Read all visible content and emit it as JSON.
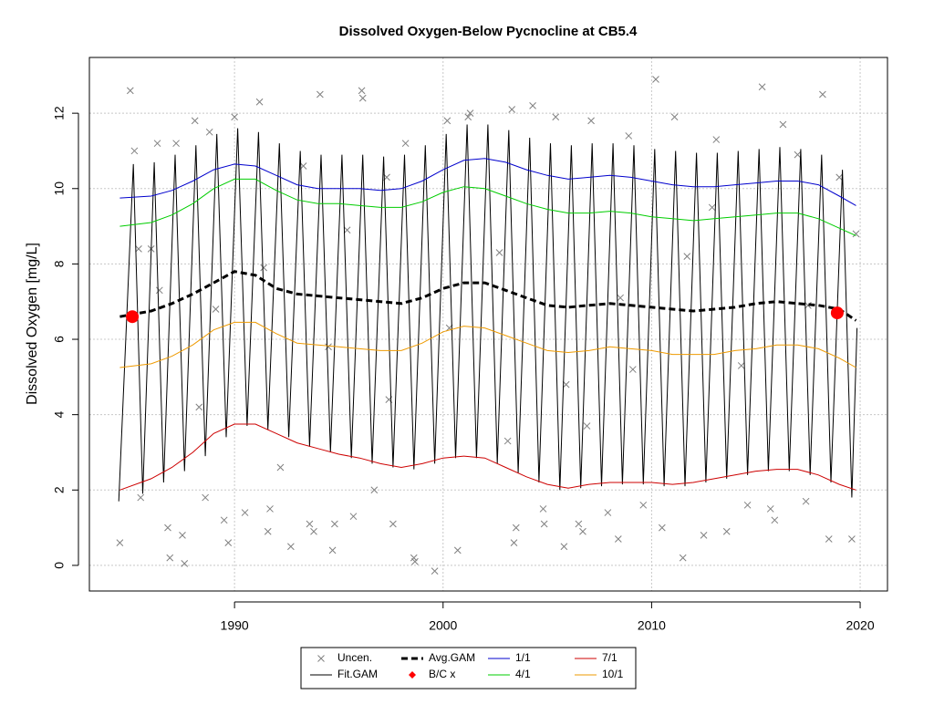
{
  "chart_data": {
    "type": "line",
    "title": "Dissolved Oxygen-Below Pycnocline at CB5.4",
    "y_label": "Dissolved Oxygen [mg/L]",
    "xlim": [
      1983.04,
      2021.31
    ],
    "ylim": [
      -0.68,
      13.48
    ],
    "xticks": [
      1990,
      2000,
      2010,
      2020
    ],
    "yticks": [
      0,
      2,
      4,
      6,
      8,
      10,
      12
    ],
    "grid": true,
    "legend": "bottom",
    "x": [
      1984.5,
      1986,
      1987,
      1988,
      1989,
      1990,
      1991,
      1992,
      1993,
      1994,
      1995,
      1996,
      1997,
      1998,
      1999,
      2000,
      2001,
      2002,
      2003,
      2004,
      2005,
      2006,
      2007,
      2008,
      2009,
      2010,
      2011,
      2012,
      2013,
      2014,
      2015,
      2016,
      2017,
      2018,
      2019,
      2019.8
    ],
    "series": [
      {
        "name": "Uncen.",
        "mark": "x",
        "color": "#808080",
        "x": [
          1984.5,
          1985.0,
          1985.2,
          1985.4,
          1985.5,
          1986.0,
          1986.3,
          1986.8,
          1986.9,
          1987.2,
          1987.5,
          1987.6,
          1988.1,
          1988.6,
          1988.8,
          1989.5,
          1989.7,
          1990.0,
          1990.5,
          1991.2,
          1991.6,
          1991.7,
          1992.2,
          1992.7,
          1993.3,
          1993.6,
          1993.8,
          1994.1,
          1994.7,
          1994.8,
          1995.7,
          1996.1,
          1996.15,
          1996.7,
          1997.3,
          1997.6,
          1998.2,
          1998.6,
          1998.65,
          1999.6,
          2000.2,
          2000.7,
          2001.3,
          2001.2,
          2003.4,
          2003.3,
          2003.5,
          2004.3,
          2004.8,
          2004.85,
          2005.4,
          2005.8,
          2006.5,
          2006.7,
          2007.1,
          2007.9,
          2008.4,
          2008.9,
          2009.6,
          2010.2,
          2010.5,
          2011.1,
          2011.5,
          2012.5,
          2013.1,
          2013.6,
          2014.6,
          2015.3,
          2015.7,
          2015.9,
          2016.3,
          2017.0,
          2017.4,
          2018.2,
          2018.5,
          2019.0,
          2019.6,
          2019.8,
          1986.4,
          1989.1,
          1991.4,
          1994.5,
          1997.4,
          2000.3,
          2002.7,
          2005.9,
          2008.5,
          2011.7,
          2014.3,
          2017.5,
          1988.3,
          1995.4,
          2006.9,
          2012.9,
          2009.1,
          2003.1
        ],
        "values": [
          0.6,
          12.6,
          11.0,
          8.4,
          1.8,
          8.4,
          11.2,
          1.0,
          0.2,
          11.2,
          0.8,
          0.05,
          11.8,
          1.8,
          11.5,
          1.2,
          0.6,
          11.9,
          1.4,
          12.3,
          0.9,
          1.5,
          2.6,
          0.5,
          10.6,
          1.1,
          0.9,
          12.5,
          0.4,
          1.1,
          1.3,
          12.6,
          12.4,
          2.0,
          10.3,
          1.1,
          11.2,
          0.2,
          0.1,
          -0.15,
          11.8,
          0.4,
          12.0,
          11.9,
          0.6,
          12.1,
          1.0,
          12.2,
          1.5,
          1.1,
          11.9,
          0.5,
          1.1,
          0.9,
          11.8,
          1.4,
          0.7,
          11.4,
          1.6,
          12.9,
          1.0,
          11.9,
          0.2,
          0.8,
          11.3,
          0.9,
          1.6,
          12.7,
          1.5,
          1.2,
          11.7,
          10.9,
          1.7,
          12.5,
          0.7,
          10.3,
          0.7,
          8.8,
          7.3,
          6.8,
          7.9,
          5.8,
          4.4,
          6.3,
          8.3,
          4.8,
          7.1,
          8.2,
          5.3,
          6.9,
          4.2,
          8.9,
          3.7,
          9.5,
          5.2,
          3.3
        ]
      },
      {
        "name": "Fit.GAM",
        "mark": "line",
        "color": "#000000",
        "x": [
          1984.45,
          1985.15,
          1985.6,
          1986.15,
          1986.6,
          1987.15,
          1987.6,
          1988.15,
          1988.6,
          1989.15,
          1989.6,
          1990.15,
          1990.6,
          1991.15,
          1991.6,
          1992.15,
          1992.6,
          1993.15,
          1993.6,
          1994.15,
          1994.6,
          1995.15,
          1995.6,
          1996.15,
          1996.6,
          1997.15,
          1997.6,
          1998.15,
          1998.6,
          1999.15,
          1999.6,
          2000.15,
          2000.6,
          2001.15,
          2001.6,
          2002.15,
          2002.6,
          2003.15,
          2003.6,
          2004.15,
          2004.6,
          2005.15,
          2005.6,
          2006.15,
          2006.6,
          2007.15,
          2007.6,
          2008.15,
          2008.6,
          2009.15,
          2009.6,
          2010.15,
          2010.6,
          2011.15,
          2011.6,
          2012.15,
          2012.6,
          2013.15,
          2013.6,
          2014.15,
          2014.6,
          2015.15,
          2015.6,
          2016.15,
          2016.6,
          2017.15,
          2017.6,
          2018.15,
          2018.6,
          2019.15,
          2019.6,
          2019.85
        ],
        "values": [
          1.7,
          10.65,
          1.9,
          10.7,
          2.2,
          10.9,
          2.5,
          11.15,
          2.9,
          11.45,
          3.4,
          11.6,
          3.7,
          11.5,
          3.6,
          11.2,
          3.4,
          11.0,
          3.15,
          10.9,
          3.0,
          10.9,
          2.85,
          10.9,
          2.7,
          10.85,
          2.6,
          10.9,
          2.55,
          11.15,
          2.7,
          11.45,
          2.85,
          11.7,
          2.85,
          11.7,
          2.7,
          11.55,
          2.45,
          11.35,
          2.2,
          11.2,
          2.0,
          11.15,
          2.05,
          11.2,
          2.1,
          11.2,
          2.15,
          11.15,
          2.15,
          11.05,
          2.1,
          11.0,
          2.1,
          10.95,
          2.2,
          10.95,
          2.3,
          11.0,
          2.4,
          11.05,
          2.5,
          11.1,
          2.5,
          11.05,
          2.4,
          10.9,
          2.2,
          10.5,
          1.8,
          6.3
        ]
      },
      {
        "name": "Avg.GAM",
        "mark": "dash",
        "color": "#000000",
        "values": [
          6.6,
          6.75,
          6.95,
          7.2,
          7.5,
          7.8,
          7.7,
          7.35,
          7.2,
          7.15,
          7.1,
          7.05,
          7.0,
          6.95,
          7.1,
          7.35,
          7.5,
          7.5,
          7.3,
          7.1,
          6.9,
          6.85,
          6.9,
          6.95,
          6.9,
          6.85,
          6.8,
          6.75,
          6.8,
          6.85,
          6.95,
          7.0,
          6.95,
          6.9,
          6.8,
          6.5
        ]
      },
      {
        "name": "B/C x",
        "mark": "dot",
        "color": "#ff0000",
        "x": [
          1985.1,
          2018.9
        ],
        "values": [
          6.6,
          6.7
        ]
      },
      {
        "name": "1/1",
        "mark": "line",
        "color": "#0000cd",
        "values": [
          9.75,
          9.8,
          9.95,
          10.2,
          10.5,
          10.65,
          10.6,
          10.35,
          10.1,
          10.0,
          10.0,
          10.0,
          9.95,
          10.0,
          10.2,
          10.5,
          10.75,
          10.8,
          10.7,
          10.5,
          10.35,
          10.25,
          10.3,
          10.35,
          10.3,
          10.2,
          10.1,
          10.05,
          10.05,
          10.1,
          10.15,
          10.2,
          10.2,
          10.1,
          9.8,
          9.55
        ]
      },
      {
        "name": "4/1",
        "mark": "line",
        "color": "#00cd00",
        "values": [
          9.0,
          9.1,
          9.3,
          9.6,
          10.0,
          10.25,
          10.25,
          9.95,
          9.7,
          9.6,
          9.6,
          9.55,
          9.5,
          9.5,
          9.65,
          9.9,
          10.05,
          10.0,
          9.8,
          9.6,
          9.45,
          9.35,
          9.35,
          9.4,
          9.35,
          9.25,
          9.2,
          9.15,
          9.2,
          9.25,
          9.3,
          9.35,
          9.35,
          9.2,
          8.95,
          8.75
        ]
      },
      {
        "name": "7/1",
        "mark": "line",
        "color": "#cd0000",
        "values": [
          2.0,
          2.3,
          2.6,
          3.0,
          3.5,
          3.75,
          3.75,
          3.5,
          3.25,
          3.1,
          2.95,
          2.85,
          2.7,
          2.6,
          2.7,
          2.85,
          2.9,
          2.85,
          2.6,
          2.35,
          2.15,
          2.05,
          2.15,
          2.2,
          2.2,
          2.2,
          2.15,
          2.2,
          2.3,
          2.4,
          2.5,
          2.55,
          2.55,
          2.4,
          2.15,
          2.0
        ]
      },
      {
        "name": "10/1",
        "mark": "line",
        "color": "#ee9a00",
        "values": [
          5.25,
          5.35,
          5.55,
          5.85,
          6.25,
          6.45,
          6.45,
          6.15,
          5.9,
          5.85,
          5.8,
          5.75,
          5.7,
          5.7,
          5.9,
          6.2,
          6.35,
          6.3,
          6.1,
          5.9,
          5.7,
          5.65,
          5.7,
          5.8,
          5.75,
          5.7,
          5.6,
          5.6,
          5.6,
          5.7,
          5.75,
          5.85,
          5.85,
          5.75,
          5.5,
          5.25
        ]
      }
    ]
  }
}
